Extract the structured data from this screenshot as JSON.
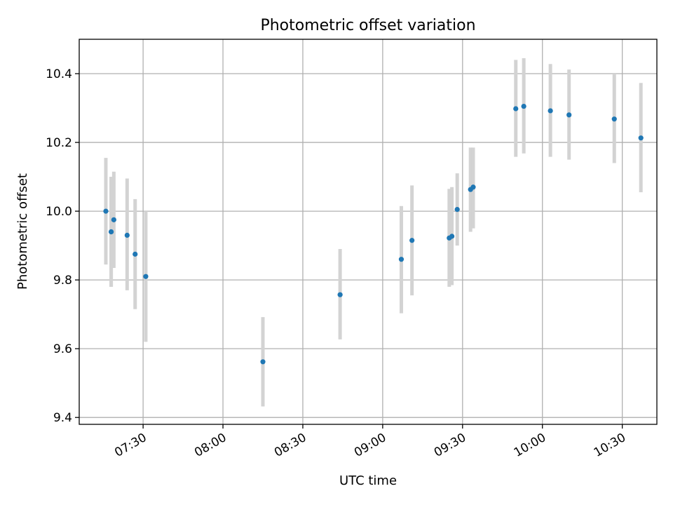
{
  "chart_data": {
    "type": "scatter",
    "title": "Photometric offset variation",
    "xlabel": "UTC time",
    "ylabel": "Photometric offset",
    "xlim": [
      "07:06",
      "10:43"
    ],
    "ylim": [
      9.38,
      10.5
    ],
    "x_ticks": [
      "07:30",
      "08:00",
      "08:30",
      "09:00",
      "09:30",
      "10:00",
      "10:30"
    ],
    "y_ticks": [
      "9.4",
      "9.6",
      "9.8",
      "10.0",
      "10.2",
      "10.4"
    ],
    "grid": true,
    "marker_color": "#1f77b4",
    "errorbar_color": "#d3d3d3",
    "points": [
      {
        "x": "07:16",
        "y": 10.0,
        "low": 9.845,
        "high": 10.155
      },
      {
        "x": "07:18",
        "y": 9.94,
        "low": 9.78,
        "high": 10.1
      },
      {
        "x": "07:18",
        "y": 9.94,
        "low": 9.78,
        "high": 10.1
      },
      {
        "x": "07:19",
        "y": 9.975,
        "low": 9.835,
        "high": 10.115
      },
      {
        "x": "07:24",
        "y": 9.93,
        "low": 9.77,
        "high": 10.095
      },
      {
        "x": "07:27",
        "y": 9.875,
        "low": 9.715,
        "high": 10.035
      },
      {
        "x": "07:31",
        "y": 9.81,
        "low": 9.62,
        "high": 10.0
      },
      {
        "x": "08:15",
        "y": 9.562,
        "low": 9.432,
        "high": 9.692
      },
      {
        "x": "08:44",
        "y": 9.757,
        "low": 9.627,
        "high": 9.89
      },
      {
        "x": "09:07",
        "y": 9.86,
        "low": 9.703,
        "high": 10.015
      },
      {
        "x": "09:11",
        "y": 9.915,
        "low": 9.755,
        "high": 10.075
      },
      {
        "x": "09:25",
        "y": 9.922,
        "low": 9.78,
        "high": 10.065
      },
      {
        "x": "09:26",
        "y": 9.927,
        "low": 9.785,
        "high": 10.07
      },
      {
        "x": "09:28",
        "y": 10.005,
        "low": 9.9,
        "high": 10.11
      },
      {
        "x": "09:33",
        "y": 10.063,
        "low": 9.94,
        "high": 10.185
      },
      {
        "x": "09:34",
        "y": 10.07,
        "low": 9.95,
        "high": 10.185
      },
      {
        "x": "09:50",
        "y": 10.298,
        "low": 10.158,
        "high": 10.44
      },
      {
        "x": "09:53",
        "y": 10.305,
        "low": 10.168,
        "high": 10.445
      },
      {
        "x": "10:03",
        "y": 10.292,
        "low": 10.158,
        "high": 10.428
      },
      {
        "x": "10:10",
        "y": 10.28,
        "low": 10.15,
        "high": 10.412
      },
      {
        "x": "10:27",
        "y": 10.268,
        "low": 10.14,
        "high": 10.4
      },
      {
        "x": "10:37",
        "y": 10.213,
        "low": 10.055,
        "high": 10.373
      }
    ]
  }
}
